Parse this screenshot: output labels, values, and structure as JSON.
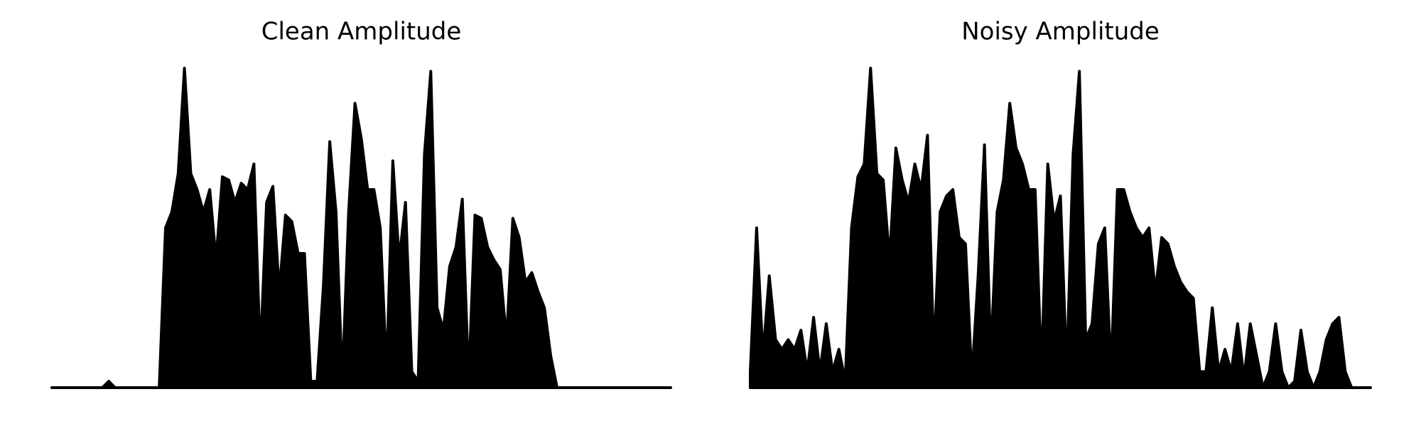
{
  "chart_data": [
    {
      "type": "area",
      "title": "Clean Amplitude",
      "color": "#000000",
      "ylim": [
        0,
        1
      ],
      "values": [
        0,
        0,
        0,
        0,
        0,
        0,
        0,
        0,
        0,
        0.02,
        0,
        0,
        0,
        0,
        0,
        0,
        0,
        0,
        0.5,
        0.55,
        0.67,
        1.0,
        0.67,
        0.62,
        0.55,
        0.62,
        0.4,
        0.66,
        0.65,
        0.58,
        0.64,
        0.62,
        0.7,
        0.1,
        0.58,
        0.63,
        0.3,
        0.54,
        0.52,
        0.42,
        0.42,
        0.02,
        0.02,
        0.32,
        0.77,
        0.55,
        0.02,
        0.55,
        0.89,
        0.78,
        0.62,
        0.62,
        0.5,
        0.05,
        0.71,
        0.4,
        0.58,
        0.05,
        0.02,
        0.73,
        0.99,
        0.25,
        0.18,
        0.38,
        0.44,
        0.59,
        0.02,
        0.54,
        0.53,
        0.44,
        0.4,
        0.37,
        0.15,
        0.53,
        0.47,
        0.33,
        0.36,
        0.3,
        0.25,
        0.1,
        0,
        0,
        0,
        0,
        0,
        0,
        0,
        0,
        0,
        0,
        0,
        0,
        0,
        0,
        0,
        0,
        0,
        0,
        0
      ]
    },
    {
      "type": "area",
      "title": "Noisy Amplitude",
      "color": "#000000",
      "ylim": [
        0,
        1
      ],
      "values": [
        0.05,
        0.5,
        0.1,
        0.35,
        0.15,
        0.12,
        0.15,
        0.12,
        0.18,
        0.05,
        0.22,
        0.05,
        0.2,
        0.05,
        0.12,
        0.02,
        0.5,
        0.66,
        0.7,
        1.0,
        0.67,
        0.65,
        0.4,
        0.75,
        0.65,
        0.58,
        0.7,
        0.62,
        0.79,
        0.1,
        0.55,
        0.6,
        0.62,
        0.47,
        0.45,
        0.03,
        0.35,
        0.76,
        0.1,
        0.55,
        0.65,
        0.89,
        0.75,
        0.7,
        0.62,
        0.62,
        0.05,
        0.7,
        0.52,
        0.6,
        0.05,
        0.73,
        0.99,
        0.15,
        0.2,
        0.45,
        0.5,
        0.05,
        0.62,
        0.62,
        0.55,
        0.5,
        0.47,
        0.5,
        0.3,
        0.47,
        0.45,
        0.38,
        0.33,
        0.3,
        0.28,
        0.05,
        0.05,
        0.25,
        0.05,
        0.12,
        0.05,
        0.2,
        0.03,
        0.2,
        0.1,
        0,
        0.05,
        0.2,
        0.05,
        0,
        0.02,
        0.18,
        0.05,
        0,
        0.05,
        0.15,
        0.2,
        0.22,
        0.05,
        0,
        0,
        0,
        0
      ]
    }
  ]
}
